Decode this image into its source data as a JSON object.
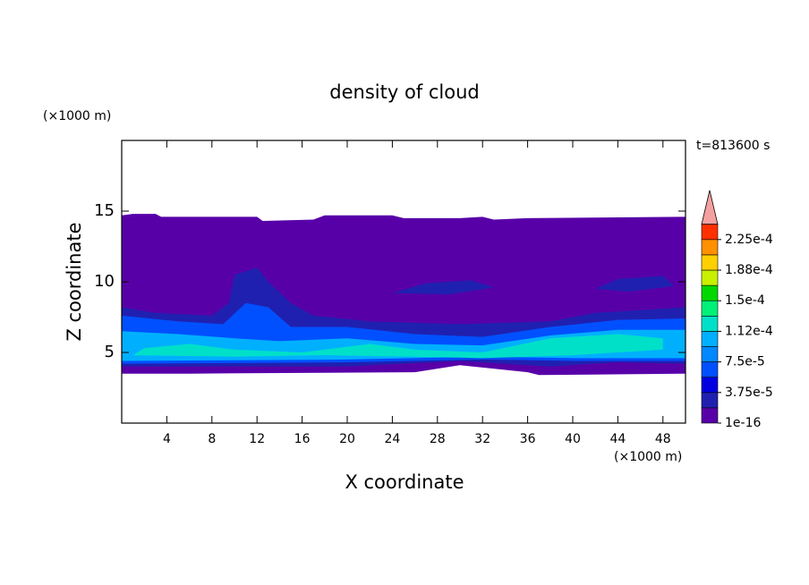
{
  "chart_data": {
    "type": "contour",
    "title": "density of cloud",
    "xlabel": "X coordinate",
    "ylabel": "Z coordinate",
    "xunit": "(×1000 m)",
    "yunit": "(×1000 m)",
    "annotation": "t=813600 s",
    "xlim": [
      0,
      50
    ],
    "ylim": [
      0,
      20
    ],
    "xticks": [
      4,
      8,
      12,
      16,
      20,
      24,
      28,
      32,
      36,
      40,
      44,
      48
    ],
    "yticks": [
      5,
      10,
      15
    ],
    "colorbar": {
      "colors": [
        "#5800a8",
        "#2020b0",
        "#0000e0",
        "#0050ff",
        "#0088ff",
        "#00b0ff",
        "#00e0c8",
        "#00f078",
        "#00d800",
        "#c8f000",
        "#ffd000",
        "#ff9000",
        "#ff3000"
      ],
      "extend_color": "#f4a0a0",
      "ticks": [
        {
          "value": 1e-16,
          "label": "1e-16"
        },
        {
          "value": 3.75e-05,
          "label": "3.75e-5"
        },
        {
          "value": 7.5e-05,
          "label": "7.5e-5"
        },
        {
          "value": 0.000112,
          "label": "1.12e-4"
        },
        {
          "value": 0.00015,
          "label": "1.5e-4"
        },
        {
          "value": 0.000188,
          "label": "1.88e-4"
        },
        {
          "value": 0.000225,
          "label": "2.25e-4"
        }
      ]
    }
  }
}
